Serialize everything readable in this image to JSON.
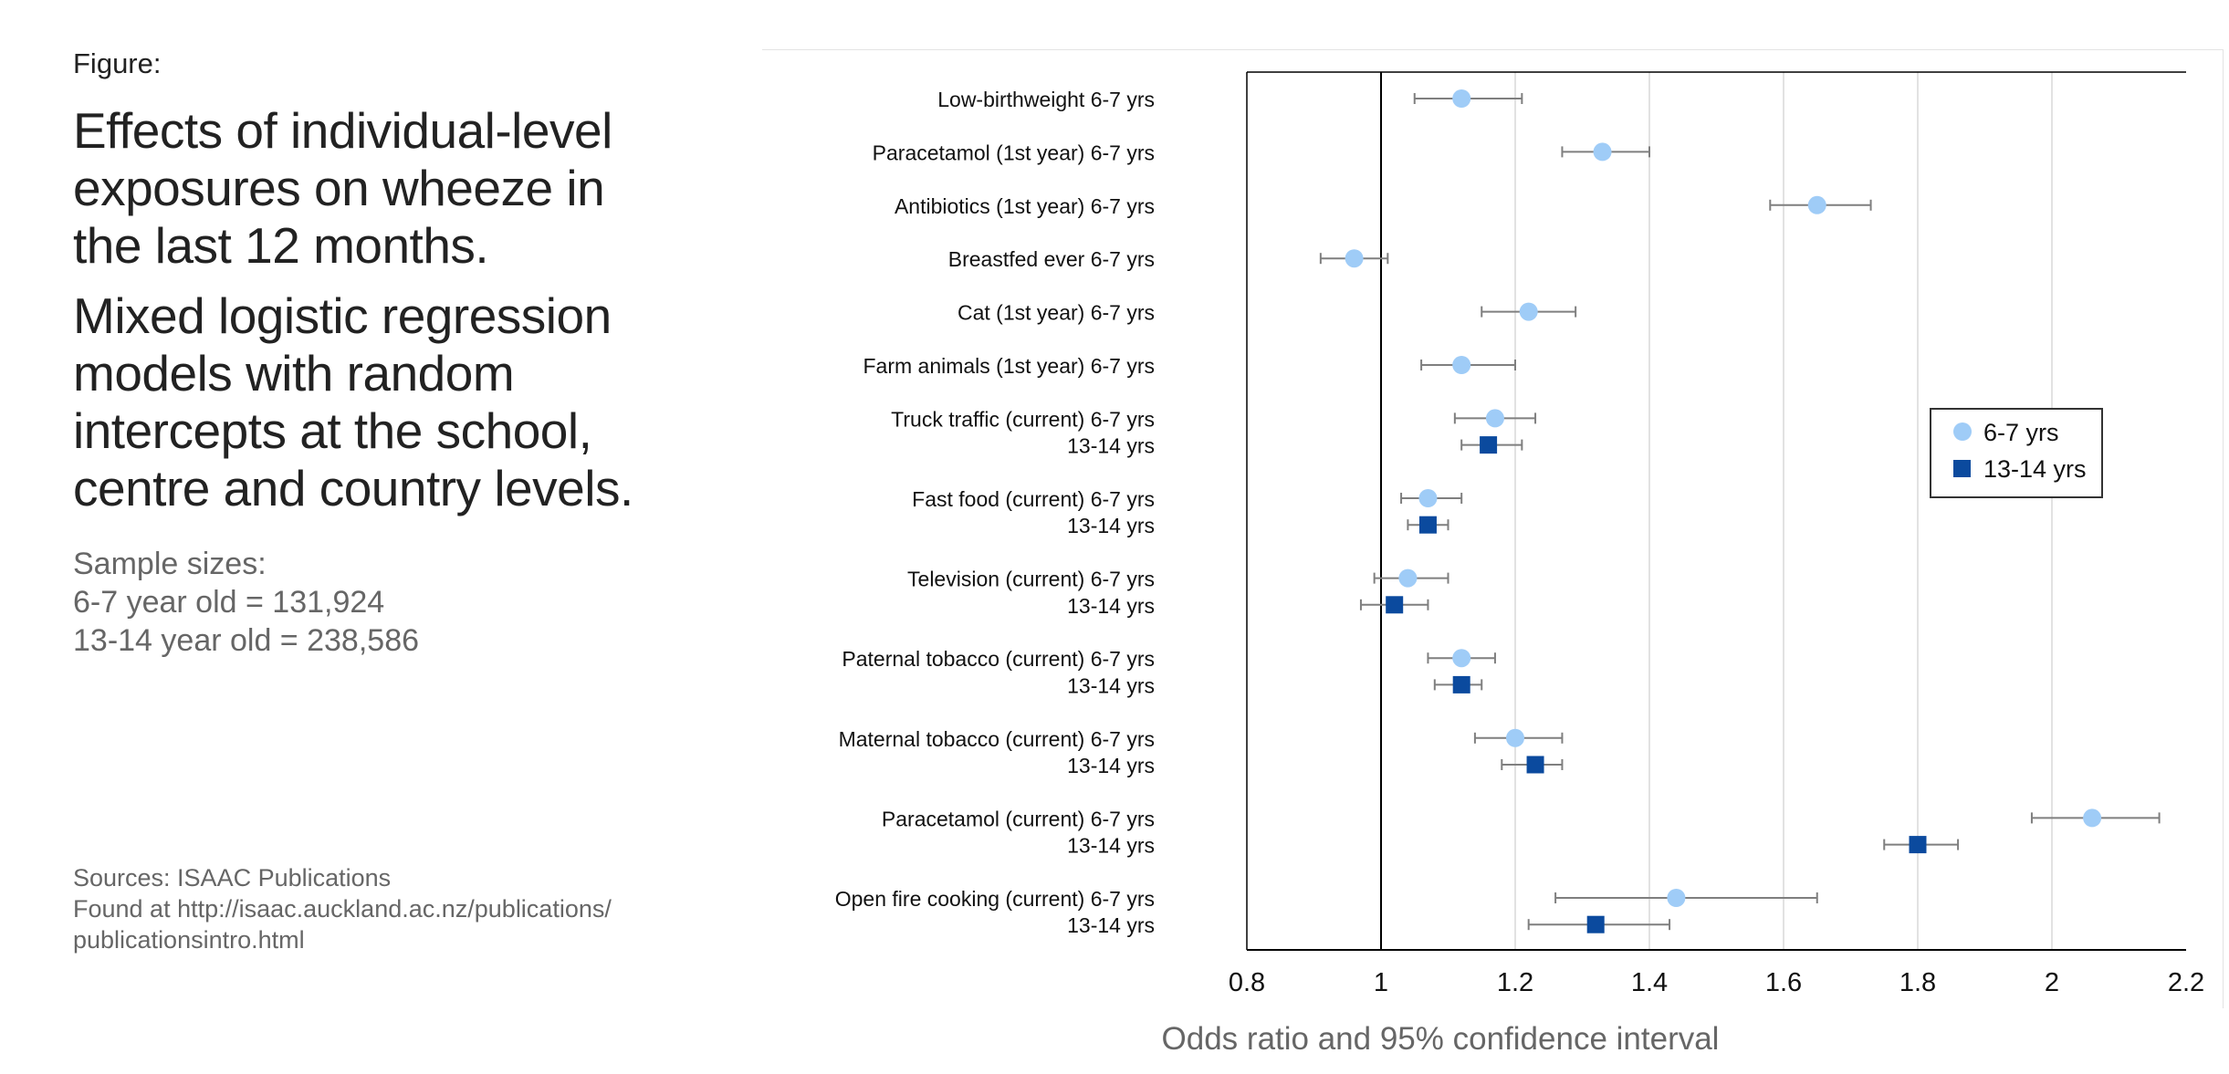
{
  "figure_label": "Figure:",
  "title_line1": [
    "Effects of individual-level",
    "exposures on wheeze in",
    "the last 12 months."
  ],
  "title_line2": [
    "Mixed logistic regression",
    "models with random",
    "intercepts at the school,",
    "centre and country levels."
  ],
  "samples": [
    "Sample sizes:",
    "6-7 year old =  131,924",
    "13-14 year old = 238,586"
  ],
  "sources": [
    "Sources: ISAAC Publications",
    "Found at http://isaac.auckland.ac.nz/publications/",
    "publicationsintro.html"
  ],
  "colors": {
    "age_6_7": "#9fccf7",
    "age_13_14": "#0b4a9e",
    "error_bar": "#7f7f7f",
    "grid": "#d9d9d9",
    "axis": "#000000"
  },
  "chart_data": {
    "type": "scatter",
    "subtype": "forest-plot",
    "xlabel": "Odds ratio and 95% confidence interval",
    "xlim": [
      0.8,
      2.2
    ],
    "x_ticks": [
      "0.8",
      "1",
      "1.2",
      "1.4",
      "1.6",
      "1.8",
      "2",
      "2.2"
    ],
    "x_tick_values": [
      0.8,
      1.0,
      1.2,
      1.4,
      1.6,
      1.8,
      2.0,
      2.2
    ],
    "reference_line": 1.0,
    "grid": true,
    "legend_position": "right",
    "legend": [
      {
        "label": "6-7 yrs",
        "marker": "circle"
      },
      {
        "label": "13-14 yrs",
        "marker": "square"
      }
    ],
    "rows": [
      {
        "label": "Low-birthweight 6-7 yrs",
        "series": "6-7 yrs",
        "or": 1.12,
        "lo": 1.05,
        "hi": 1.21
      },
      {
        "label": "Paracetamol (1st year) 6-7 yrs",
        "series": "6-7 yrs",
        "or": 1.33,
        "lo": 1.27,
        "hi": 1.4
      },
      {
        "label": "Antibiotics (1st year) 6-7 yrs",
        "series": "6-7 yrs",
        "or": 1.65,
        "lo": 1.58,
        "hi": 1.73
      },
      {
        "label": "Breastfed ever 6-7 yrs",
        "series": "6-7 yrs",
        "or": 0.96,
        "lo": 0.91,
        "hi": 1.01
      },
      {
        "label": "Cat (1st year) 6-7 yrs",
        "series": "6-7 yrs",
        "or": 1.22,
        "lo": 1.15,
        "hi": 1.29
      },
      {
        "label": "Farm animals (1st year) 6-7 yrs",
        "series": "6-7 yrs",
        "or": 1.12,
        "lo": 1.06,
        "hi": 1.2
      },
      {
        "label": "Truck traffic (current) 6-7 yrs",
        "series": "6-7 yrs",
        "or": 1.17,
        "lo": 1.11,
        "hi": 1.23
      },
      {
        "label": "13-14 yrs",
        "series": "13-14 yrs",
        "or": 1.16,
        "lo": 1.12,
        "hi": 1.21
      },
      {
        "label": "Fast food (current) 6-7 yrs",
        "series": "6-7 yrs",
        "or": 1.07,
        "lo": 1.03,
        "hi": 1.12
      },
      {
        "label": "13-14 yrs",
        "series": "13-14 yrs",
        "or": 1.07,
        "lo": 1.04,
        "hi": 1.1
      },
      {
        "label": "Television  (current) 6-7 yrs",
        "series": "6-7 yrs",
        "or": 1.04,
        "lo": 0.99,
        "hi": 1.1
      },
      {
        "label": "13-14 yrs",
        "series": "13-14 yrs",
        "or": 1.02,
        "lo": 0.97,
        "hi": 1.07
      },
      {
        "label": "Paternal tobacco (current) 6-7 yrs",
        "series": "6-7 yrs",
        "or": 1.12,
        "lo": 1.07,
        "hi": 1.17
      },
      {
        "label": "13-14 yrs",
        "series": "13-14 yrs",
        "or": 1.12,
        "lo": 1.08,
        "hi": 1.15
      },
      {
        "label": "Maternal tobacco (current) 6-7 yrs",
        "series": "6-7 yrs",
        "or": 1.2,
        "lo": 1.14,
        "hi": 1.27
      },
      {
        "label": "13-14 yrs",
        "series": "13-14 yrs",
        "or": 1.23,
        "lo": 1.18,
        "hi": 1.27
      },
      {
        "label": "Paracetamol (current) 6-7 yrs",
        "series": "6-7 yrs",
        "or": 2.06,
        "lo": 1.97,
        "hi": 2.16
      },
      {
        "label": "13-14 yrs",
        "series": "13-14 yrs",
        "or": 1.8,
        "lo": 1.75,
        "hi": 1.86
      },
      {
        "label": "Open fire cooking (current) 6-7 yrs",
        "series": "6-7 yrs",
        "or": 1.44,
        "lo": 1.26,
        "hi": 1.65
      },
      {
        "label": "13-14 yrs",
        "series": "13-14 yrs",
        "or": 1.32,
        "lo": 1.22,
        "hi": 1.43
      }
    ]
  }
}
